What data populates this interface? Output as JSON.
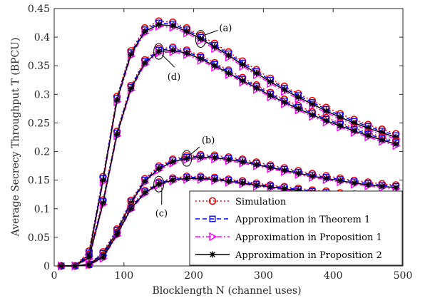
{
  "chart_data": {
    "type": "line",
    "xlabel": "Blocklength N (channel uses)",
    "ylabel": "Average Secrecy Throughput T (BPCU)",
    "xlim": [
      0,
      500
    ],
    "ylim": [
      0,
      0.45
    ],
    "xticks": [
      "0",
      "100",
      "200",
      "300",
      "400",
      "500"
    ],
    "yticks": [
      "0",
      "0.05",
      "0.1",
      "0.15",
      "0.2",
      "0.25",
      "0.3",
      "0.35",
      "0.4",
      "0.45"
    ],
    "grid": false,
    "legend_position": "bottom-right",
    "legend": [
      {
        "label": "Simulation",
        "color": "#ff0000",
        "marker": "circle",
        "dash": "dotted"
      },
      {
        "label": "Approximation in Theorem 1",
        "color": "#0000ff",
        "marker": "square",
        "dash": "dashed"
      },
      {
        "label": "Approximation in Proposition 1",
        "color": "#ff00ff",
        "marker": "triangle-right",
        "dash": "dashdot"
      },
      {
        "label": "Approximation in Proposition 2",
        "color": "#000000",
        "marker": "asterisk",
        "dash": "solid"
      }
    ],
    "x": [
      10,
      30,
      50,
      70,
      90,
      110,
      130,
      150,
      170,
      190,
      210,
      230,
      250,
      270,
      290,
      310,
      330,
      350,
      370,
      390,
      410,
      430,
      450,
      470,
      490
    ],
    "curves": [
      {
        "annotation": "(a)",
        "values": [
          0,
          0,
          0.02,
          0.15,
          0.29,
          0.37,
          0.41,
          0.422,
          0.42,
          0.41,
          0.397,
          0.383,
          0.368,
          0.352,
          0.337,
          0.322,
          0.308,
          0.295,
          0.283,
          0.271,
          0.26,
          0.25,
          0.241,
          0.233,
          0.225
        ]
      },
      {
        "annotation": "(d)",
        "values": [
          0,
          0,
          0.015,
          0.11,
          0.23,
          0.31,
          0.355,
          0.375,
          0.377,
          0.372,
          0.362,
          0.35,
          0.337,
          0.324,
          0.311,
          0.298,
          0.286,
          0.275,
          0.264,
          0.254,
          0.245,
          0.236,
          0.228,
          0.22,
          0.213
        ]
      },
      {
        "annotation": "(b)",
        "values": [
          0,
          0,
          0.003,
          0.02,
          0.06,
          0.11,
          0.148,
          0.17,
          0.182,
          0.188,
          0.19,
          0.189,
          0.186,
          0.182,
          0.177,
          0.172,
          0.167,
          0.162,
          0.157,
          0.153,
          0.149,
          0.145,
          0.142,
          0.139,
          0.137
        ]
      },
      {
        "annotation": "(c)",
        "values": [
          0,
          0,
          0.002,
          0.015,
          0.055,
          0.1,
          0.128,
          0.143,
          0.15,
          0.153,
          0.153,
          0.151,
          0.148,
          0.145,
          0.141,
          0.138,
          0.135,
          0.132,
          0.129,
          0.127,
          0.124,
          0.122,
          0.12,
          0.118,
          0.116
        ]
      }
    ]
  }
}
